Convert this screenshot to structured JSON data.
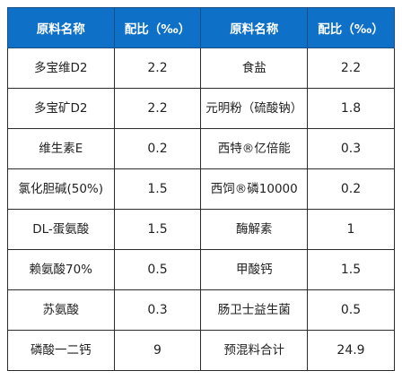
{
  "table": {
    "headers": [
      "原料名称",
      "配比（‰）",
      "原料名称",
      "配比（‰）"
    ],
    "rows": [
      [
        "多宝维D2",
        "2.2",
        "食盐",
        "2.2"
      ],
      [
        "多宝矿D2",
        "2.2",
        "元明粉（硫酸钠）",
        "1.8"
      ],
      [
        "维生素E",
        "0.2",
        "西特®亿倍能",
        "0.3"
      ],
      [
        "氯化胆碱(50%)",
        "1.5",
        "西饲®磷10000",
        "0.2"
      ],
      [
        "DL-蛋氨酸",
        "1.5",
        "酶解素",
        "1"
      ],
      [
        "赖氨酸70%",
        "0.5",
        "甲酸钙",
        "1.5"
      ],
      [
        "苏氨酸",
        "0.3",
        "肠卫士益生菌",
        "0.5"
      ],
      [
        "磷酸一二钙",
        "9",
        "预混料合计",
        "24.9"
      ]
    ]
  }
}
